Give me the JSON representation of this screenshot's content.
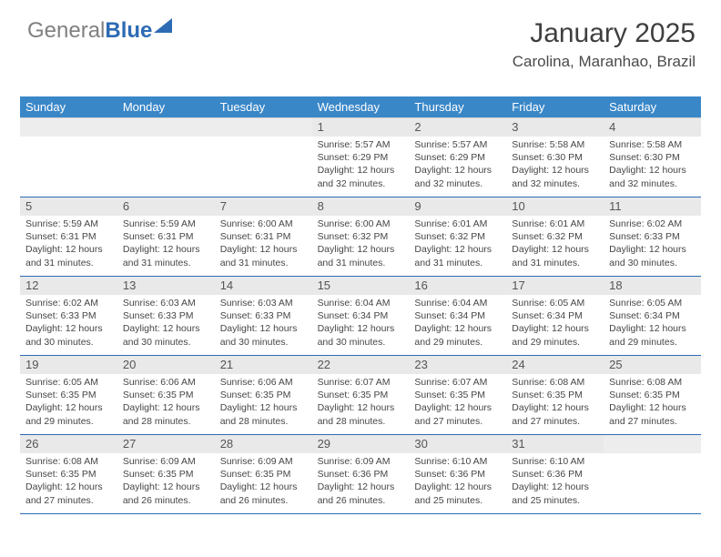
{
  "logo": {
    "text_gray": "General",
    "text_blue": "Blue",
    "triangle_color": "#2d6bb4"
  },
  "header": {
    "title": "January 2025",
    "location": "Carolina, Maranhao, Brazil"
  },
  "dayNames": [
    "Sunday",
    "Monday",
    "Tuesday",
    "Wednesday",
    "Thursday",
    "Friday",
    "Saturday"
  ],
  "weeks": [
    [
      null,
      null,
      null,
      {
        "n": "1",
        "sr": "5:57 AM",
        "ss": "6:29 PM",
        "dl": "12 hours and 32 minutes."
      },
      {
        "n": "2",
        "sr": "5:57 AM",
        "ss": "6:29 PM",
        "dl": "12 hours and 32 minutes."
      },
      {
        "n": "3",
        "sr": "5:58 AM",
        "ss": "6:30 PM",
        "dl": "12 hours and 32 minutes."
      },
      {
        "n": "4",
        "sr": "5:58 AM",
        "ss": "6:30 PM",
        "dl": "12 hours and 32 minutes."
      }
    ],
    [
      {
        "n": "5",
        "sr": "5:59 AM",
        "ss": "6:31 PM",
        "dl": "12 hours and 31 minutes."
      },
      {
        "n": "6",
        "sr": "5:59 AM",
        "ss": "6:31 PM",
        "dl": "12 hours and 31 minutes."
      },
      {
        "n": "7",
        "sr": "6:00 AM",
        "ss": "6:31 PM",
        "dl": "12 hours and 31 minutes."
      },
      {
        "n": "8",
        "sr": "6:00 AM",
        "ss": "6:32 PM",
        "dl": "12 hours and 31 minutes."
      },
      {
        "n": "9",
        "sr": "6:01 AM",
        "ss": "6:32 PM",
        "dl": "12 hours and 31 minutes."
      },
      {
        "n": "10",
        "sr": "6:01 AM",
        "ss": "6:32 PM",
        "dl": "12 hours and 31 minutes."
      },
      {
        "n": "11",
        "sr": "6:02 AM",
        "ss": "6:33 PM",
        "dl": "12 hours and 30 minutes."
      }
    ],
    [
      {
        "n": "12",
        "sr": "6:02 AM",
        "ss": "6:33 PM",
        "dl": "12 hours and 30 minutes."
      },
      {
        "n": "13",
        "sr": "6:03 AM",
        "ss": "6:33 PM",
        "dl": "12 hours and 30 minutes."
      },
      {
        "n": "14",
        "sr": "6:03 AM",
        "ss": "6:33 PM",
        "dl": "12 hours and 30 minutes."
      },
      {
        "n": "15",
        "sr": "6:04 AM",
        "ss": "6:34 PM",
        "dl": "12 hours and 30 minutes."
      },
      {
        "n": "16",
        "sr": "6:04 AM",
        "ss": "6:34 PM",
        "dl": "12 hours and 29 minutes."
      },
      {
        "n": "17",
        "sr": "6:05 AM",
        "ss": "6:34 PM",
        "dl": "12 hours and 29 minutes."
      },
      {
        "n": "18",
        "sr": "6:05 AM",
        "ss": "6:34 PM",
        "dl": "12 hours and 29 minutes."
      }
    ],
    [
      {
        "n": "19",
        "sr": "6:05 AM",
        "ss": "6:35 PM",
        "dl": "12 hours and 29 minutes."
      },
      {
        "n": "20",
        "sr": "6:06 AM",
        "ss": "6:35 PM",
        "dl": "12 hours and 28 minutes."
      },
      {
        "n": "21",
        "sr": "6:06 AM",
        "ss": "6:35 PM",
        "dl": "12 hours and 28 minutes."
      },
      {
        "n": "22",
        "sr": "6:07 AM",
        "ss": "6:35 PM",
        "dl": "12 hours and 28 minutes."
      },
      {
        "n": "23",
        "sr": "6:07 AM",
        "ss": "6:35 PM",
        "dl": "12 hours and 27 minutes."
      },
      {
        "n": "24",
        "sr": "6:08 AM",
        "ss": "6:35 PM",
        "dl": "12 hours and 27 minutes."
      },
      {
        "n": "25",
        "sr": "6:08 AM",
        "ss": "6:35 PM",
        "dl": "12 hours and 27 minutes."
      }
    ],
    [
      {
        "n": "26",
        "sr": "6:08 AM",
        "ss": "6:35 PM",
        "dl": "12 hours and 27 minutes."
      },
      {
        "n": "27",
        "sr": "6:09 AM",
        "ss": "6:35 PM",
        "dl": "12 hours and 26 minutes."
      },
      {
        "n": "28",
        "sr": "6:09 AM",
        "ss": "6:35 PM",
        "dl": "12 hours and 26 minutes."
      },
      {
        "n": "29",
        "sr": "6:09 AM",
        "ss": "6:36 PM",
        "dl": "12 hours and 26 minutes."
      },
      {
        "n": "30",
        "sr": "6:10 AM",
        "ss": "6:36 PM",
        "dl": "12 hours and 25 minutes."
      },
      {
        "n": "31",
        "sr": "6:10 AM",
        "ss": "6:36 PM",
        "dl": "12 hours and 25 minutes."
      },
      null
    ]
  ],
  "labels": {
    "sunrise": "Sunrise:",
    "sunset": "Sunset:",
    "daylight": "Daylight:"
  },
  "colors": {
    "header_bar": "#3a87c8",
    "day_num_bg": "#e9e9e9",
    "row_border": "#2d6bb4",
    "text": "#464646"
  }
}
